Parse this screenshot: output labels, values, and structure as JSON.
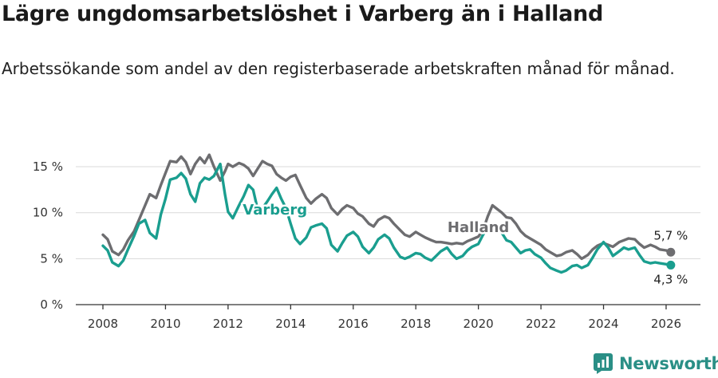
{
  "header": {
    "title": "Lägre ungdomsarbetslöshet i Varberg än i Halland",
    "subtitle": "Arbetssökande som andel av den registerbaserade arbetskraften månad för månad."
  },
  "brand": {
    "name": "Newsworthy",
    "icon": "newsworthy-logo-icon",
    "color": "#2a8f86"
  },
  "chart_data": {
    "type": "line",
    "title": "Lägre ungdomsarbetslöshet i Varberg än i Halland",
    "xlabel": "",
    "ylabel": "",
    "xlim": [
      2007.5,
      2026.7
    ],
    "ylim": [
      0,
      17
    ],
    "grid": true,
    "x_ticks": [
      {
        "value": 2008,
        "label": "2008"
      },
      {
        "value": 2010,
        "label": "2010"
      },
      {
        "value": 2012,
        "label": "2012"
      },
      {
        "value": 2014,
        "label": "2014"
      },
      {
        "value": 2016,
        "label": "2016"
      },
      {
        "value": 2018,
        "label": "2018"
      },
      {
        "value": 2020,
        "label": "2020"
      },
      {
        "value": 2022,
        "label": "2022"
      },
      {
        "value": 2024,
        "label": "2024"
      },
      {
        "value": 2026,
        "label": "2026"
      }
    ],
    "y_ticks": [
      {
        "value": 0,
        "label": "0 %"
      },
      {
        "value": 5,
        "label": "5 %"
      },
      {
        "value": 10,
        "label": "10 %"
      },
      {
        "value": 15,
        "label": "15 %"
      }
    ],
    "series": [
      {
        "name": "Halland",
        "color": "#6d6d70",
        "label": "Halland",
        "label_x": 2020.0,
        "label_y": 7.9,
        "end_label": "5,7 %",
        "points": [
          [
            2008.0,
            7.6
          ],
          [
            2008.15,
            7.1
          ],
          [
            2008.3,
            5.8
          ],
          [
            2008.5,
            5.4
          ],
          [
            2008.65,
            6.0
          ],
          [
            2008.8,
            7.0
          ],
          [
            2009.0,
            8.0
          ],
          [
            2009.15,
            9.2
          ],
          [
            2009.35,
            10.8
          ],
          [
            2009.5,
            12.0
          ],
          [
            2009.7,
            11.6
          ],
          [
            2009.85,
            13.0
          ],
          [
            2010.0,
            14.3
          ],
          [
            2010.15,
            15.6
          ],
          [
            2010.35,
            15.5
          ],
          [
            2010.5,
            16.1
          ],
          [
            2010.65,
            15.5
          ],
          [
            2010.8,
            14.2
          ],
          [
            2010.95,
            15.3
          ],
          [
            2011.1,
            16.0
          ],
          [
            2011.25,
            15.4
          ],
          [
            2011.4,
            16.3
          ],
          [
            2011.55,
            15.0
          ],
          [
            2011.75,
            13.5
          ],
          [
            2011.9,
            14.5
          ],
          [
            2012.0,
            15.3
          ],
          [
            2012.15,
            15.0
          ],
          [
            2012.35,
            15.4
          ],
          [
            2012.5,
            15.2
          ],
          [
            2012.65,
            14.8
          ],
          [
            2012.8,
            14.0
          ],
          [
            2012.95,
            14.8
          ],
          [
            2013.1,
            15.6
          ],
          [
            2013.25,
            15.3
          ],
          [
            2013.4,
            15.1
          ],
          [
            2013.55,
            14.2
          ],
          [
            2013.7,
            13.8
          ],
          [
            2013.85,
            13.5
          ],
          [
            2014.0,
            13.9
          ],
          [
            2014.15,
            14.1
          ],
          [
            2014.3,
            13.0
          ],
          [
            2014.5,
            11.6
          ],
          [
            2014.65,
            11.0
          ],
          [
            2014.8,
            11.5
          ],
          [
            2015.0,
            12.0
          ],
          [
            2015.15,
            11.6
          ],
          [
            2015.3,
            10.5
          ],
          [
            2015.5,
            9.8
          ],
          [
            2015.65,
            10.4
          ],
          [
            2015.8,
            10.8
          ],
          [
            2016.0,
            10.5
          ],
          [
            2016.15,
            9.9
          ],
          [
            2016.3,
            9.6
          ],
          [
            2016.5,
            8.8
          ],
          [
            2016.65,
            8.5
          ],
          [
            2016.8,
            9.2
          ],
          [
            2017.0,
            9.6
          ],
          [
            2017.15,
            9.4
          ],
          [
            2017.3,
            8.8
          ],
          [
            2017.5,
            8.1
          ],
          [
            2017.65,
            7.6
          ],
          [
            2017.8,
            7.4
          ],
          [
            2018.0,
            7.9
          ],
          [
            2018.15,
            7.6
          ],
          [
            2018.3,
            7.3
          ],
          [
            2018.5,
            7.0
          ],
          [
            2018.65,
            6.8
          ],
          [
            2018.8,
            6.8
          ],
          [
            2019.0,
            6.7
          ],
          [
            2019.15,
            6.6
          ],
          [
            2019.3,
            6.7
          ],
          [
            2019.5,
            6.6
          ],
          [
            2019.65,
            6.9
          ],
          [
            2019.8,
            7.1
          ],
          [
            2020.0,
            7.4
          ],
          [
            2020.15,
            8.1
          ],
          [
            2020.3,
            9.6
          ],
          [
            2020.45,
            10.8
          ],
          [
            2020.6,
            10.4
          ],
          [
            2020.75,
            10.0
          ],
          [
            2020.9,
            9.5
          ],
          [
            2021.05,
            9.4
          ],
          [
            2021.2,
            8.8
          ],
          [
            2021.35,
            8.0
          ],
          [
            2021.5,
            7.5
          ],
          [
            2021.65,
            7.2
          ],
          [
            2021.8,
            6.9
          ],
          [
            2022.0,
            6.5
          ],
          [
            2022.15,
            6.0
          ],
          [
            2022.3,
            5.7
          ],
          [
            2022.5,
            5.3
          ],
          [
            2022.65,
            5.4
          ],
          [
            2022.8,
            5.7
          ],
          [
            2023.0,
            5.9
          ],
          [
            2023.15,
            5.5
          ],
          [
            2023.3,
            5.0
          ],
          [
            2023.5,
            5.4
          ],
          [
            2023.65,
            6.0
          ],
          [
            2023.8,
            6.4
          ],
          [
            2024.0,
            6.7
          ],
          [
            2024.15,
            6.5
          ],
          [
            2024.3,
            6.3
          ],
          [
            2024.5,
            6.8
          ],
          [
            2024.65,
            7.0
          ],
          [
            2024.8,
            7.2
          ],
          [
            2025.0,
            7.1
          ],
          [
            2025.15,
            6.6
          ],
          [
            2025.3,
            6.2
          ],
          [
            2025.5,
            6.5
          ],
          [
            2025.65,
            6.3
          ],
          [
            2025.8,
            6.0
          ],
          [
            2026.0,
            5.9
          ],
          [
            2026.15,
            5.7
          ]
        ]
      },
      {
        "name": "Varberg",
        "color": "#1a9e8f",
        "label": "Varberg",
        "label_x": 2013.5,
        "label_y": 9.8,
        "end_label": "4,3 %",
        "points": [
          [
            2008.0,
            6.4
          ],
          [
            2008.15,
            5.9
          ],
          [
            2008.3,
            4.6
          ],
          [
            2008.5,
            4.2
          ],
          [
            2008.65,
            4.8
          ],
          [
            2008.8,
            6.0
          ],
          [
            2009.0,
            7.5
          ],
          [
            2009.15,
            8.8
          ],
          [
            2009.35,
            9.2
          ],
          [
            2009.5,
            7.8
          ],
          [
            2009.7,
            7.2
          ],
          [
            2009.85,
            9.8
          ],
          [
            2010.0,
            11.5
          ],
          [
            2010.15,
            13.6
          ],
          [
            2010.35,
            13.8
          ],
          [
            2010.5,
            14.3
          ],
          [
            2010.65,
            13.7
          ],
          [
            2010.8,
            12.0
          ],
          [
            2010.95,
            11.2
          ],
          [
            2011.1,
            13.2
          ],
          [
            2011.25,
            13.8
          ],
          [
            2011.4,
            13.6
          ],
          [
            2011.55,
            14.0
          ],
          [
            2011.75,
            15.3
          ],
          [
            2011.9,
            12.0
          ],
          [
            2012.0,
            10.1
          ],
          [
            2012.15,
            9.4
          ],
          [
            2012.35,
            10.8
          ],
          [
            2012.5,
            11.8
          ],
          [
            2012.65,
            13.0
          ],
          [
            2012.8,
            12.5
          ],
          [
            2012.95,
            10.3
          ],
          [
            2013.1,
            10.5
          ],
          [
            2013.25,
            11.2
          ],
          [
            2013.4,
            12.0
          ],
          [
            2013.55,
            12.7
          ],
          [
            2013.7,
            11.5
          ],
          [
            2013.85,
            10.5
          ],
          [
            2014.0,
            8.8
          ],
          [
            2014.15,
            7.2
          ],
          [
            2014.3,
            6.6
          ],
          [
            2014.5,
            7.3
          ],
          [
            2014.65,
            8.4
          ],
          [
            2014.8,
            8.6
          ],
          [
            2015.0,
            8.8
          ],
          [
            2015.15,
            8.3
          ],
          [
            2015.3,
            6.5
          ],
          [
            2015.5,
            5.8
          ],
          [
            2015.65,
            6.7
          ],
          [
            2015.8,
            7.5
          ],
          [
            2016.0,
            7.9
          ],
          [
            2016.15,
            7.4
          ],
          [
            2016.3,
            6.3
          ],
          [
            2016.5,
            5.6
          ],
          [
            2016.65,
            6.2
          ],
          [
            2016.8,
            7.1
          ],
          [
            2017.0,
            7.6
          ],
          [
            2017.15,
            7.2
          ],
          [
            2017.3,
            6.2
          ],
          [
            2017.5,
            5.2
          ],
          [
            2017.65,
            5.0
          ],
          [
            2017.8,
            5.2
          ],
          [
            2018.0,
            5.6
          ],
          [
            2018.15,
            5.5
          ],
          [
            2018.3,
            5.1
          ],
          [
            2018.5,
            4.8
          ],
          [
            2018.65,
            5.3
          ],
          [
            2018.8,
            5.8
          ],
          [
            2019.0,
            6.2
          ],
          [
            2019.15,
            5.5
          ],
          [
            2019.3,
            5.0
          ],
          [
            2019.5,
            5.3
          ],
          [
            2019.65,
            5.9
          ],
          [
            2019.8,
            6.3
          ],
          [
            2020.0,
            6.6
          ],
          [
            2020.15,
            7.6
          ],
          [
            2020.3,
            8.4
          ],
          [
            2020.45,
            8.8
          ],
          [
            2020.6,
            8.6
          ],
          [
            2020.75,
            7.8
          ],
          [
            2020.9,
            7.0
          ],
          [
            2021.05,
            6.8
          ],
          [
            2021.2,
            6.2
          ],
          [
            2021.35,
            5.6
          ],
          [
            2021.5,
            5.9
          ],
          [
            2021.65,
            6.0
          ],
          [
            2021.8,
            5.5
          ],
          [
            2022.0,
            5.1
          ],
          [
            2022.15,
            4.5
          ],
          [
            2022.3,
            4.0
          ],
          [
            2022.5,
            3.7
          ],
          [
            2022.65,
            3.5
          ],
          [
            2022.8,
            3.7
          ],
          [
            2023.0,
            4.2
          ],
          [
            2023.15,
            4.3
          ],
          [
            2023.3,
            4.0
          ],
          [
            2023.5,
            4.3
          ],
          [
            2023.65,
            5.1
          ],
          [
            2023.8,
            6.0
          ],
          [
            2024.0,
            6.8
          ],
          [
            2024.15,
            6.2
          ],
          [
            2024.3,
            5.3
          ],
          [
            2024.5,
            5.8
          ],
          [
            2024.65,
            6.2
          ],
          [
            2024.8,
            6.0
          ],
          [
            2025.0,
            6.2
          ],
          [
            2025.15,
            5.4
          ],
          [
            2025.3,
            4.7
          ],
          [
            2025.5,
            4.5
          ],
          [
            2025.65,
            4.6
          ],
          [
            2025.8,
            4.5
          ],
          [
            2026.0,
            4.4
          ],
          [
            2026.15,
            4.3
          ]
        ]
      }
    ]
  }
}
